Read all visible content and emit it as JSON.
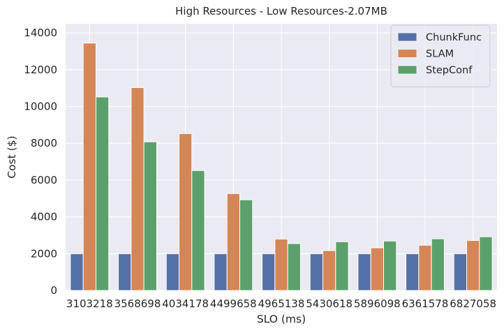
{
  "chart_data": {
    "type": "bar",
    "title": "High Resources - Low Resources-2.07MB",
    "xlabel": "SLO (ms)",
    "ylabel": "Cost ($)",
    "ylim": [
      0,
      14500
    ],
    "yticks": [
      0,
      2000,
      4000,
      6000,
      8000,
      10000,
      12000,
      14000
    ],
    "grid": true,
    "legend_position": "top-right",
    "categories": [
      "3103218",
      "3568698",
      "4034178",
      "4499658",
      "4965138",
      "5430618",
      "5896098",
      "6361578",
      "6827058"
    ],
    "series": [
      {
        "name": "ChunkFunc",
        "color": "#5470a8",
        "values": [
          2000,
          2000,
          2000,
          2000,
          2000,
          2000,
          2000,
          2000,
          2000
        ]
      },
      {
        "name": "SLAM",
        "color": "#d48657",
        "values": [
          13450,
          11030,
          8530,
          5270,
          2800,
          2170,
          2320,
          2460,
          2720
        ]
      },
      {
        "name": "StepConf",
        "color": "#5ba06a",
        "values": [
          10520,
          8080,
          6520,
          4930,
          2550,
          2650,
          2690,
          2810,
          2920
        ]
      }
    ]
  }
}
